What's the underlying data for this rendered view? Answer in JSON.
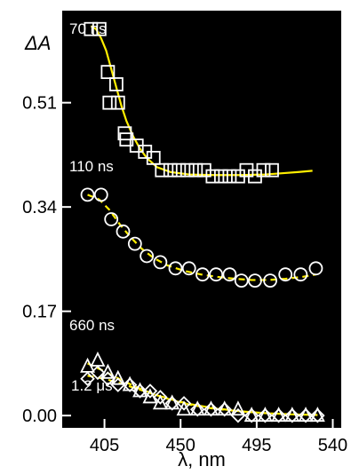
{
  "chart_data": {
    "type": "scatter",
    "ylabel": "ΔA",
    "xlabel": "λ, nm",
    "xlim": [
      380,
      545
    ],
    "ylim": [
      -0.02,
      0.66
    ],
    "xticks": [
      405,
      450,
      495,
      540
    ],
    "yticks": [
      0.0,
      0.17,
      0.34,
      0.51
    ],
    "ytick_labels": [
      "0.00",
      "0.17",
      "0.34",
      "0.51"
    ],
    "background": "#000000",
    "fit_color": "#ffee00",
    "marker_color": "#ffffff",
    "series": [
      {
        "name": "70 ns",
        "marker": "square",
        "x": [
          397,
          402,
          407,
          408,
          412,
          413,
          417,
          418,
          424,
          429,
          434,
          439,
          444,
          449,
          454,
          459,
          464,
          469,
          474,
          479,
          484,
          489,
          494,
          499,
          504
        ],
        "y": [
          0.63,
          0.63,
          0.56,
          0.51,
          0.54,
          0.51,
          0.46,
          0.45,
          0.44,
          0.43,
          0.42,
          0.4,
          0.4,
          0.4,
          0.4,
          0.4,
          0.4,
          0.39,
          0.39,
          0.39,
          0.39,
          0.4,
          0.39,
          0.4,
          0.4
        ],
        "fit": {
          "x": [
            397,
            400,
            403,
            406,
            409,
            412,
            415,
            418,
            422,
            426,
            430,
            436,
            444,
            455,
            470,
            485,
            500,
            510,
            520,
            528
          ],
          "y": [
            0.635,
            0.63,
            0.615,
            0.595,
            0.565,
            0.535,
            0.505,
            0.48,
            0.455,
            0.435,
            0.42,
            0.405,
            0.397,
            0.393,
            0.392,
            0.392,
            0.393,
            0.395,
            0.397,
            0.399
          ]
        },
        "x_shift": 0
      },
      {
        "name": "110 ns",
        "marker": "circle",
        "x": [
          395,
          403,
          409,
          416,
          423,
          430,
          438,
          447,
          455,
          463,
          471,
          479,
          486,
          494,
          503,
          512,
          521,
          530
        ],
        "y": [
          0.36,
          0.36,
          0.32,
          0.3,
          0.28,
          0.26,
          0.25,
          0.24,
          0.24,
          0.23,
          0.23,
          0.23,
          0.22,
          0.22,
          0.22,
          0.23,
          0.23,
          0.24
        ],
        "fit": {
          "x": [
            395,
            402,
            408,
            414,
            420,
            427,
            434,
            442,
            452,
            462,
            472,
            482,
            492,
            502,
            512,
            522,
            530
          ],
          "y": [
            0.36,
            0.352,
            0.335,
            0.312,
            0.292,
            0.272,
            0.257,
            0.245,
            0.236,
            0.23,
            0.226,
            0.223,
            0.221,
            0.221,
            0.223,
            0.226,
            0.23
          ]
        },
        "x_shift": 0
      },
      {
        "name": "660 ns",
        "marker": "triangle",
        "x": [
          395,
          401,
          407,
          413,
          420,
          426,
          432,
          438,
          445,
          452,
          460,
          468,
          476,
          484,
          492,
          500,
          508,
          516,
          524,
          531
        ],
        "y": [
          0.08,
          0.09,
          0.07,
          0.06,
          0.05,
          0.04,
          0.03,
          0.02,
          0.02,
          0.01,
          0.01,
          0.01,
          0.01,
          0.01,
          0.0,
          0.0,
          0.0,
          0.0,
          0.0,
          0.0
        ],
        "fit": {
          "x": [
            395,
            405,
            415,
            425,
            435,
            445,
            455,
            470,
            485,
            500,
            515,
            531
          ],
          "y": [
            0.085,
            0.072,
            0.058,
            0.045,
            0.034,
            0.025,
            0.018,
            0.011,
            0.007,
            0.004,
            0.002,
            0.001
          ]
        },
        "x_shift": 0
      },
      {
        "name": "1.2 μs",
        "marker": "diamond",
        "x": [
          395,
          401,
          407,
          413,
          420,
          426,
          432,
          438,
          445,
          452,
          460,
          468,
          476,
          484,
          492,
          500,
          508,
          516,
          524,
          531
        ],
        "y": [
          0.06,
          0.07,
          0.06,
          0.05,
          0.05,
          0.04,
          0.04,
          0.03,
          0.02,
          0.02,
          0.01,
          0.01,
          0.01,
          0.0,
          0.0,
          0.0,
          0.0,
          0.0,
          0.0,
          0.0
        ],
        "fit": {
          "x": [
            395,
            405,
            415,
            425,
            435,
            445,
            455,
            470,
            485,
            500,
            515,
            531
          ],
          "y": [
            0.065,
            0.06,
            0.052,
            0.043,
            0.034,
            0.026,
            0.019,
            0.012,
            0.007,
            0.004,
            0.002,
            0.001
          ]
        },
        "x_shift": 0
      }
    ]
  }
}
